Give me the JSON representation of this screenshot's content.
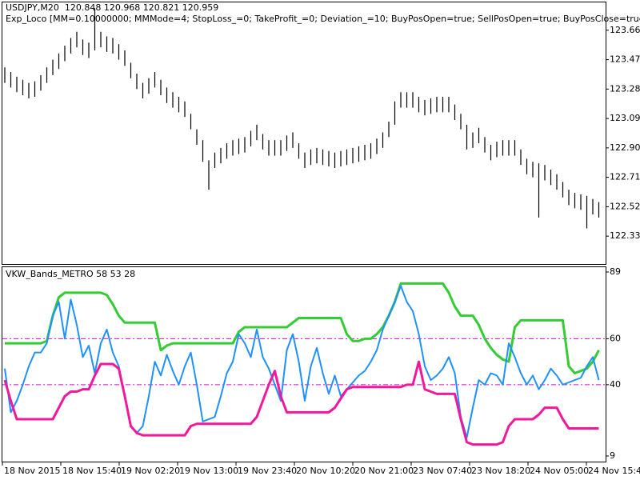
{
  "chart_data": [
    {
      "type": "ohlc",
      "title": "USDJPY,M20  120.848 120.968 120.821 120.959",
      "subtitle": "Exp_Loco [MM=0.10000000; MMMode=4; StopLoss_=0; TakeProfit_=0; Deviation_=10; BuyPosOpen=true; SellPosOpen=true; BuyPosClose=true; SellPos",
      "color": "#000000",
      "high": [
        123.42,
        123.39,
        123.36,
        123.34,
        123.32,
        123.33,
        123.37,
        123.42,
        123.47,
        123.51,
        123.56,
        123.61,
        123.65,
        123.6,
        123.58,
        123.8,
        123.65,
        123.62,
        123.61,
        123.57,
        123.53,
        123.45,
        123.38,
        123.32,
        123.35,
        123.39,
        123.34,
        123.29,
        123.26,
        123.23,
        123.2,
        123.12,
        123.02,
        122.95,
        122.82,
        122.87,
        122.9,
        122.93,
        122.95,
        122.96,
        122.97,
        123.01,
        123.05,
        122.99,
        122.95,
        122.95,
        122.95,
        122.98,
        123.0,
        122.93,
        122.87,
        122.89,
        122.9,
        122.89,
        122.88,
        122.87,
        122.88,
        122.89,
        122.9,
        122.91,
        122.92,
        122.93,
        122.96,
        123.0,
        123.07,
        123.2,
        123.26,
        123.26,
        123.26,
        123.23,
        123.21,
        123.22,
        123.23,
        123.23,
        123.23,
        123.18,
        123.12,
        123.05,
        123.0,
        123.03,
        122.97,
        122.92,
        122.94,
        122.95,
        122.95,
        122.95,
        122.89,
        122.83,
        122.81,
        122.8,
        122.79,
        122.76,
        122.73,
        122.68,
        122.63,
        122.61,
        122.6,
        122.59,
        122.57,
        122.55
      ],
      "low": [
        123.32,
        123.29,
        123.26,
        123.24,
        123.22,
        123.23,
        123.27,
        123.32,
        123.37,
        123.41,
        123.46,
        123.51,
        123.55,
        123.5,
        123.48,
        123.53,
        123.55,
        123.52,
        123.51,
        123.47,
        123.43,
        123.35,
        123.28,
        123.22,
        123.25,
        123.29,
        123.24,
        123.19,
        123.16,
        123.13,
        123.1,
        123.02,
        122.92,
        122.81,
        122.63,
        122.77,
        122.8,
        122.83,
        122.85,
        122.86,
        122.87,
        122.91,
        122.95,
        122.89,
        122.85,
        122.85,
        122.85,
        122.88,
        122.9,
        122.83,
        122.77,
        122.79,
        122.8,
        122.79,
        122.78,
        122.77,
        122.78,
        122.79,
        122.8,
        122.81,
        122.82,
        122.83,
        122.86,
        122.9,
        122.97,
        123.05,
        123.16,
        123.16,
        123.16,
        123.13,
        123.11,
        123.12,
        123.13,
        123.13,
        123.13,
        123.08,
        123.02,
        122.89,
        122.9,
        122.93,
        122.87,
        122.82,
        122.84,
        122.85,
        122.85,
        122.85,
        122.79,
        122.73,
        122.71,
        122.45,
        122.69,
        122.66,
        122.63,
        122.58,
        122.53,
        122.51,
        122.5,
        122.38,
        122.47,
        122.45
      ],
      "ylim": [
        122.15,
        123.845
      ],
      "yticks": [
        {
          "value": 123.66,
          "label": "123.660"
        },
        {
          "value": 123.47,
          "label": "123.470"
        },
        {
          "value": 123.28,
          "label": "123.280"
        },
        {
          "value": 123.09,
          "label": "123.090"
        },
        {
          "value": 122.9,
          "label": "122.900"
        },
        {
          "value": 122.71,
          "label": "122.710"
        },
        {
          "value": 122.52,
          "label": "122.520"
        },
        {
          "value": 122.33,
          "label": "122.330"
        }
      ]
    },
    {
      "type": "line",
      "title": "VKW_Bands_METRO 58 53 28",
      "series": [
        {
          "color": "#33cc33",
          "values": [
            58,
            58,
            58,
            58,
            58,
            58,
            58,
            59,
            70,
            78,
            80,
            80,
            80,
            80,
            80,
            80,
            80,
            79,
            75,
            70,
            67,
            67,
            67,
            67,
            67,
            67,
            55,
            57,
            58,
            58,
            58,
            58,
            58,
            58,
            58,
            58,
            58,
            58,
            58,
            63,
            65,
            65,
            65,
            65,
            65,
            65,
            65,
            65,
            67,
            69,
            69,
            69,
            69,
            69,
            69,
            69,
            69,
            62,
            59,
            59,
            60,
            60,
            62,
            65,
            70,
            76,
            84,
            84,
            84,
            84,
            84,
            84,
            84,
            84,
            80,
            74,
            70,
            70,
            70,
            66,
            60,
            56,
            53,
            51,
            50,
            65,
            68,
            68,
            68,
            68,
            68,
            68,
            68,
            68,
            48,
            45,
            46,
            47,
            50,
            55
          ]
        },
        {
          "color": "#1e90ff",
          "values": [
            47,
            28,
            33,
            40,
            48,
            54,
            54,
            58,
            70,
            76,
            60,
            77,
            66,
            52,
            57,
            45,
            58,
            64,
            54,
            48,
            35,
            22,
            19,
            22,
            35,
            50,
            44,
            53,
            46,
            40,
            48,
            54,
            40,
            24,
            25,
            26,
            35,
            45,
            50,
            62,
            58,
            52,
            64,
            52,
            47,
            40,
            33,
            55,
            62,
            50,
            33,
            48,
            56,
            45,
            36,
            44,
            35,
            38,
            41,
            44,
            46,
            50,
            55,
            64,
            70,
            76,
            83,
            76,
            72,
            62,
            48,
            42,
            44,
            47,
            52,
            45,
            26,
            17,
            30,
            42,
            40,
            45,
            44,
            40,
            58,
            52,
            45,
            40,
            44,
            38,
            42,
            47,
            44,
            40,
            41,
            42,
            43,
            48,
            52,
            42
          ]
        },
        {
          "color": "#f0189c",
          "values": [
            42,
            33,
            25,
            25,
            25,
            25,
            25,
            25,
            25,
            30,
            35,
            37,
            37,
            38,
            38,
            44,
            49,
            49,
            49,
            47,
            35,
            22,
            19,
            18,
            18,
            18,
            18,
            18,
            18,
            18,
            18,
            22,
            23,
            23,
            23,
            23,
            23,
            23,
            23,
            23,
            23,
            23,
            26,
            33,
            40,
            46,
            35,
            28,
            28,
            28,
            28,
            28,
            28,
            28,
            28,
            30,
            34,
            38,
            39,
            39,
            39,
            39,
            39,
            39,
            39,
            39,
            39,
            40,
            40,
            50,
            38,
            37,
            36,
            36,
            36,
            36,
            25,
            15,
            14,
            14,
            14,
            14,
            14,
            15,
            22,
            25,
            25,
            25,
            25,
            27,
            30,
            30,
            30,
            25,
            21,
            21,
            21,
            21,
            21,
            21
          ]
        }
      ],
      "levels": [
        60,
        40
      ],
      "level_color": "#e000e0",
      "ylim": [
        9,
        89
      ],
      "yticks": [
        89,
        60,
        40,
        9
      ],
      "time_labels": [
        "18 Nov 2015",
        "18 Nov 15:40",
        "19 Nov 02:20",
        "19 Nov 13:00",
        "19 Nov 23:40",
        "20 Nov 10:20",
        "20 Nov 21:00",
        "23 Nov 07:40",
        "23 Nov 18:20",
        "24 Nov 05:00",
        "24 Nov 15:40"
      ]
    }
  ]
}
